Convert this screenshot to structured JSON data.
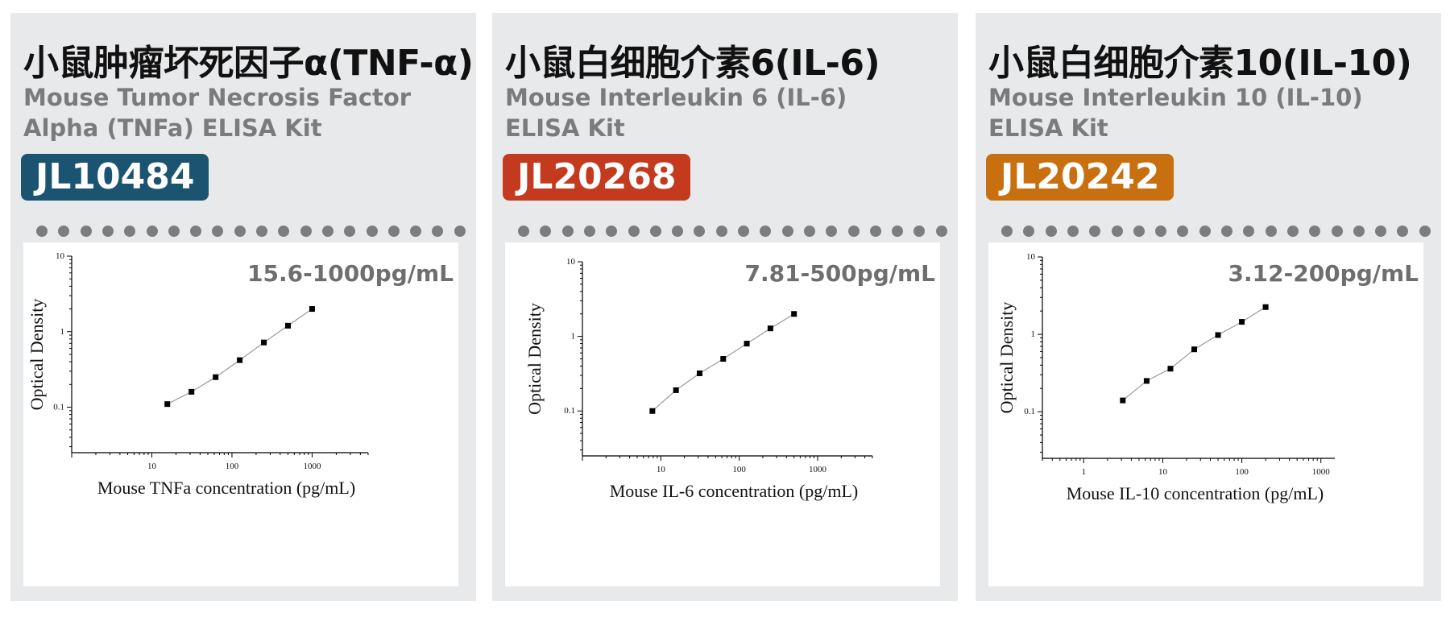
{
  "colors": {
    "card_bg": "#e8e9eb",
    "dot": "#7d7d7d",
    "line": "#9a9a9a",
    "marker": "#000000"
  },
  "panels": [
    {
      "title": "小鼠肿瘤坏死因子α(TNF-α)",
      "subtitle_line1": "Mouse Tumor Necrosis Factor",
      "subtitle_line2": "Alpha (TNFa) ELISA Kit",
      "code": "JL10484",
      "badge_color": "#1a5471",
      "range": "15.6-1000pg/mL"
    },
    {
      "title": "小鼠白细胞介素6(IL-6)",
      "subtitle_line1": "Mouse Interleukin 6 (IL-6)",
      "subtitle_line2": "ELISA Kit",
      "code": "JL20268",
      "badge_color": "#c33a1e",
      "range": "7.81-500pg/mL"
    },
    {
      "title": "小鼠白细胞介素10(IL-10)",
      "subtitle_line1": "Mouse Interleukin 10 (IL-10)",
      "subtitle_line2": "ELISA Kit",
      "code": "JL20242",
      "badge_color": "#c8700f",
      "range": "3.12-200pg/mL"
    }
  ],
  "chart_data": [
    {
      "type": "line",
      "xscale": "log",
      "yscale": "log",
      "xlim": [
        1,
        5000
      ],
      "ylim": [
        0.025,
        10
      ],
      "xticks": [
        10,
        100,
        1000
      ],
      "yticks": [
        0.1,
        1,
        10
      ],
      "xlabel": "Mouse TNFa concentration (pg/mL)",
      "ylabel": "Optical Density",
      "x": [
        15.6,
        31.25,
        62.5,
        125,
        250,
        500,
        1000
      ],
      "y": [
        0.11,
        0.16,
        0.25,
        0.42,
        0.72,
        1.2,
        2.0
      ]
    },
    {
      "type": "line",
      "xscale": "log",
      "yscale": "log",
      "xlim": [
        1,
        5000
      ],
      "ylim": [
        0.025,
        10
      ],
      "xticks": [
        10,
        100,
        1000
      ],
      "yticks": [
        0.1,
        1,
        10
      ],
      "xlabel": "Mouse IL-6 concentration (pg/mL)",
      "ylabel": "Optical Density",
      "x": [
        7.81,
        15.63,
        31.25,
        62.5,
        125,
        250,
        500
      ],
      "y": [
        0.1,
        0.19,
        0.32,
        0.5,
        0.8,
        1.28,
        2.0
      ]
    },
    {
      "type": "line",
      "xscale": "log",
      "yscale": "log",
      "xlim": [
        0.3,
        1500
      ],
      "ylim": [
        0.025,
        10
      ],
      "xticks": [
        1,
        10,
        100,
        1000
      ],
      "yticks": [
        0.1,
        1,
        10
      ],
      "xlabel": "Mouse IL-10 concentration (pg/mL)",
      "ylabel": "Optical Density",
      "x": [
        3.12,
        6.25,
        12.5,
        25,
        50,
        100,
        200
      ],
      "y": [
        0.14,
        0.25,
        0.36,
        0.64,
        0.98,
        1.45,
        2.25
      ]
    }
  ]
}
